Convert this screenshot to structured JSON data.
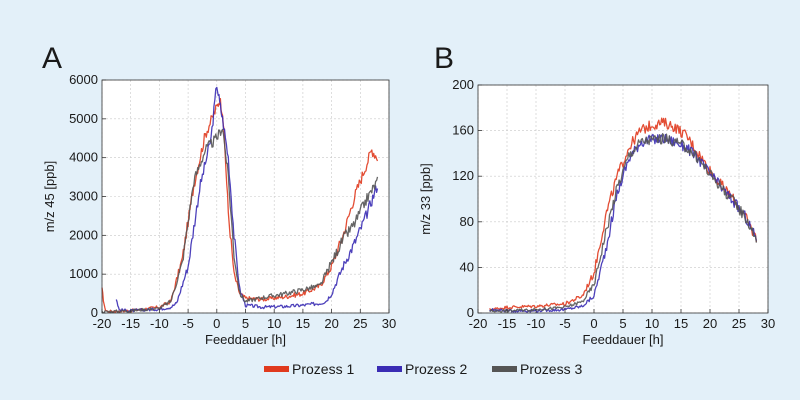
{
  "colors": {
    "prozess1": "#e03a1e",
    "prozess2": "#3a2cb4",
    "prozess3": "#555555"
  },
  "legend": [
    {
      "name": "Prozess 1",
      "color": "#e03a1e"
    },
    {
      "name": "Prozess 2",
      "color": "#3a2cb4"
    },
    {
      "name": "Prozess 3",
      "color": "#555555"
    }
  ],
  "chart_data": [
    {
      "panel": "A",
      "type": "line",
      "xlabel": "Feeddauer [h]",
      "ylabel": "m/z 45 [ppb]",
      "xlim": [
        -20,
        30
      ],
      "ylim": [
        0,
        6000
      ],
      "xticks": [
        -20,
        -15,
        -10,
        -5,
        0,
        5,
        10,
        15,
        20,
        25,
        30
      ],
      "yticks": [
        0,
        1000,
        2000,
        3000,
        4000,
        5000,
        6000
      ],
      "grid": true,
      "series": [
        {
          "name": "Prozess 1",
          "color": "#e03a1e",
          "x": [
            -20,
            -19.5,
            -19,
            -15,
            -10,
            -8,
            -6,
            -4,
            -2,
            0,
            0.5,
            1,
            1.5,
            2,
            3,
            4,
            5,
            8,
            12,
            15,
            18,
            20,
            22,
            24,
            26,
            27,
            28
          ],
          "y": [
            600,
            100,
            40,
            60,
            150,
            300,
            1400,
            3300,
            4600,
            5300,
            5500,
            5200,
            4000,
            2600,
            1000,
            500,
            380,
            350,
            420,
            500,
            700,
            1200,
            2000,
            3000,
            3800,
            4200,
            4000
          ]
        },
        {
          "name": "Prozess 2",
          "color": "#3a2cb4",
          "x": [
            -17.5,
            -17,
            -15,
            -10,
            -8,
            -7,
            -5,
            -3,
            -1,
            0,
            0.5,
            1,
            2,
            3,
            4,
            5,
            8,
            12,
            15,
            18,
            19,
            20,
            22,
            24,
            26,
            28
          ],
          "y": [
            350,
            80,
            60,
            100,
            150,
            250,
            1200,
            3200,
            4500,
            5900,
            5400,
            5000,
            4000,
            2000,
            600,
            200,
            150,
            170,
            200,
            250,
            300,
            500,
            1200,
            1800,
            2500,
            3300
          ]
        },
        {
          "name": "Prozess 3",
          "color": "#555555",
          "x": [
            -20,
            -15,
            -10,
            -8,
            -6,
            -4,
            -2,
            0,
            1,
            2,
            3,
            4,
            5,
            8,
            12,
            15,
            18,
            20,
            22,
            24,
            26,
            28
          ],
          "y": [
            30,
            60,
            120,
            300,
            1300,
            3400,
            4200,
            4500,
            4800,
            3500,
            1500,
            500,
            300,
            400,
            500,
            600,
            700,
            1300,
            1900,
            2300,
            2900,
            3400
          ]
        }
      ]
    },
    {
      "panel": "B",
      "type": "line",
      "xlabel": "Feeddauer [h]",
      "ylabel": "m/z 33 [ppb]",
      "xlim": [
        -20,
        30
      ],
      "ylim": [
        0,
        200
      ],
      "xticks": [
        -20,
        -15,
        -10,
        -5,
        0,
        5,
        10,
        15,
        20,
        25,
        30
      ],
      "yticks": [
        0,
        40,
        80,
        120,
        160,
        200
      ],
      "grid": true,
      "series": [
        {
          "name": "Prozess 1",
          "color": "#e03a1e",
          "x": [
            -18,
            -15,
            -10,
            -5,
            -2,
            0,
            2,
            4,
            6,
            8,
            10,
            12,
            14,
            16,
            18,
            20,
            22,
            24,
            26,
            28
          ],
          "y": [
            3,
            5,
            6,
            8,
            15,
            35,
            85,
            120,
            145,
            160,
            165,
            167,
            163,
            155,
            140,
            125,
            112,
            100,
            85,
            65
          ]
        },
        {
          "name": "Prozess 2",
          "color": "#3a2cb4",
          "x": [
            -18,
            -15,
            -10,
            -5,
            -2,
            0,
            2,
            4,
            6,
            8,
            10,
            12,
            14,
            16,
            18,
            20,
            22,
            24,
            26,
            28
          ],
          "y": [
            3,
            2,
            2,
            3,
            6,
            15,
            55,
            105,
            135,
            150,
            152,
            153,
            150,
            145,
            135,
            122,
            110,
            98,
            85,
            65
          ]
        },
        {
          "name": "Prozess 3",
          "color": "#555555",
          "x": [
            -18,
            -15,
            -10,
            -5,
            -2,
            0,
            2,
            4,
            6,
            8,
            10,
            12,
            14,
            16,
            18,
            20,
            22,
            24,
            26,
            28
          ],
          "y": [
            2,
            2,
            3,
            5,
            10,
            25,
            70,
            110,
            138,
            150,
            152,
            153,
            150,
            145,
            135,
            122,
            110,
            98,
            85,
            65
          ]
        }
      ]
    }
  ]
}
